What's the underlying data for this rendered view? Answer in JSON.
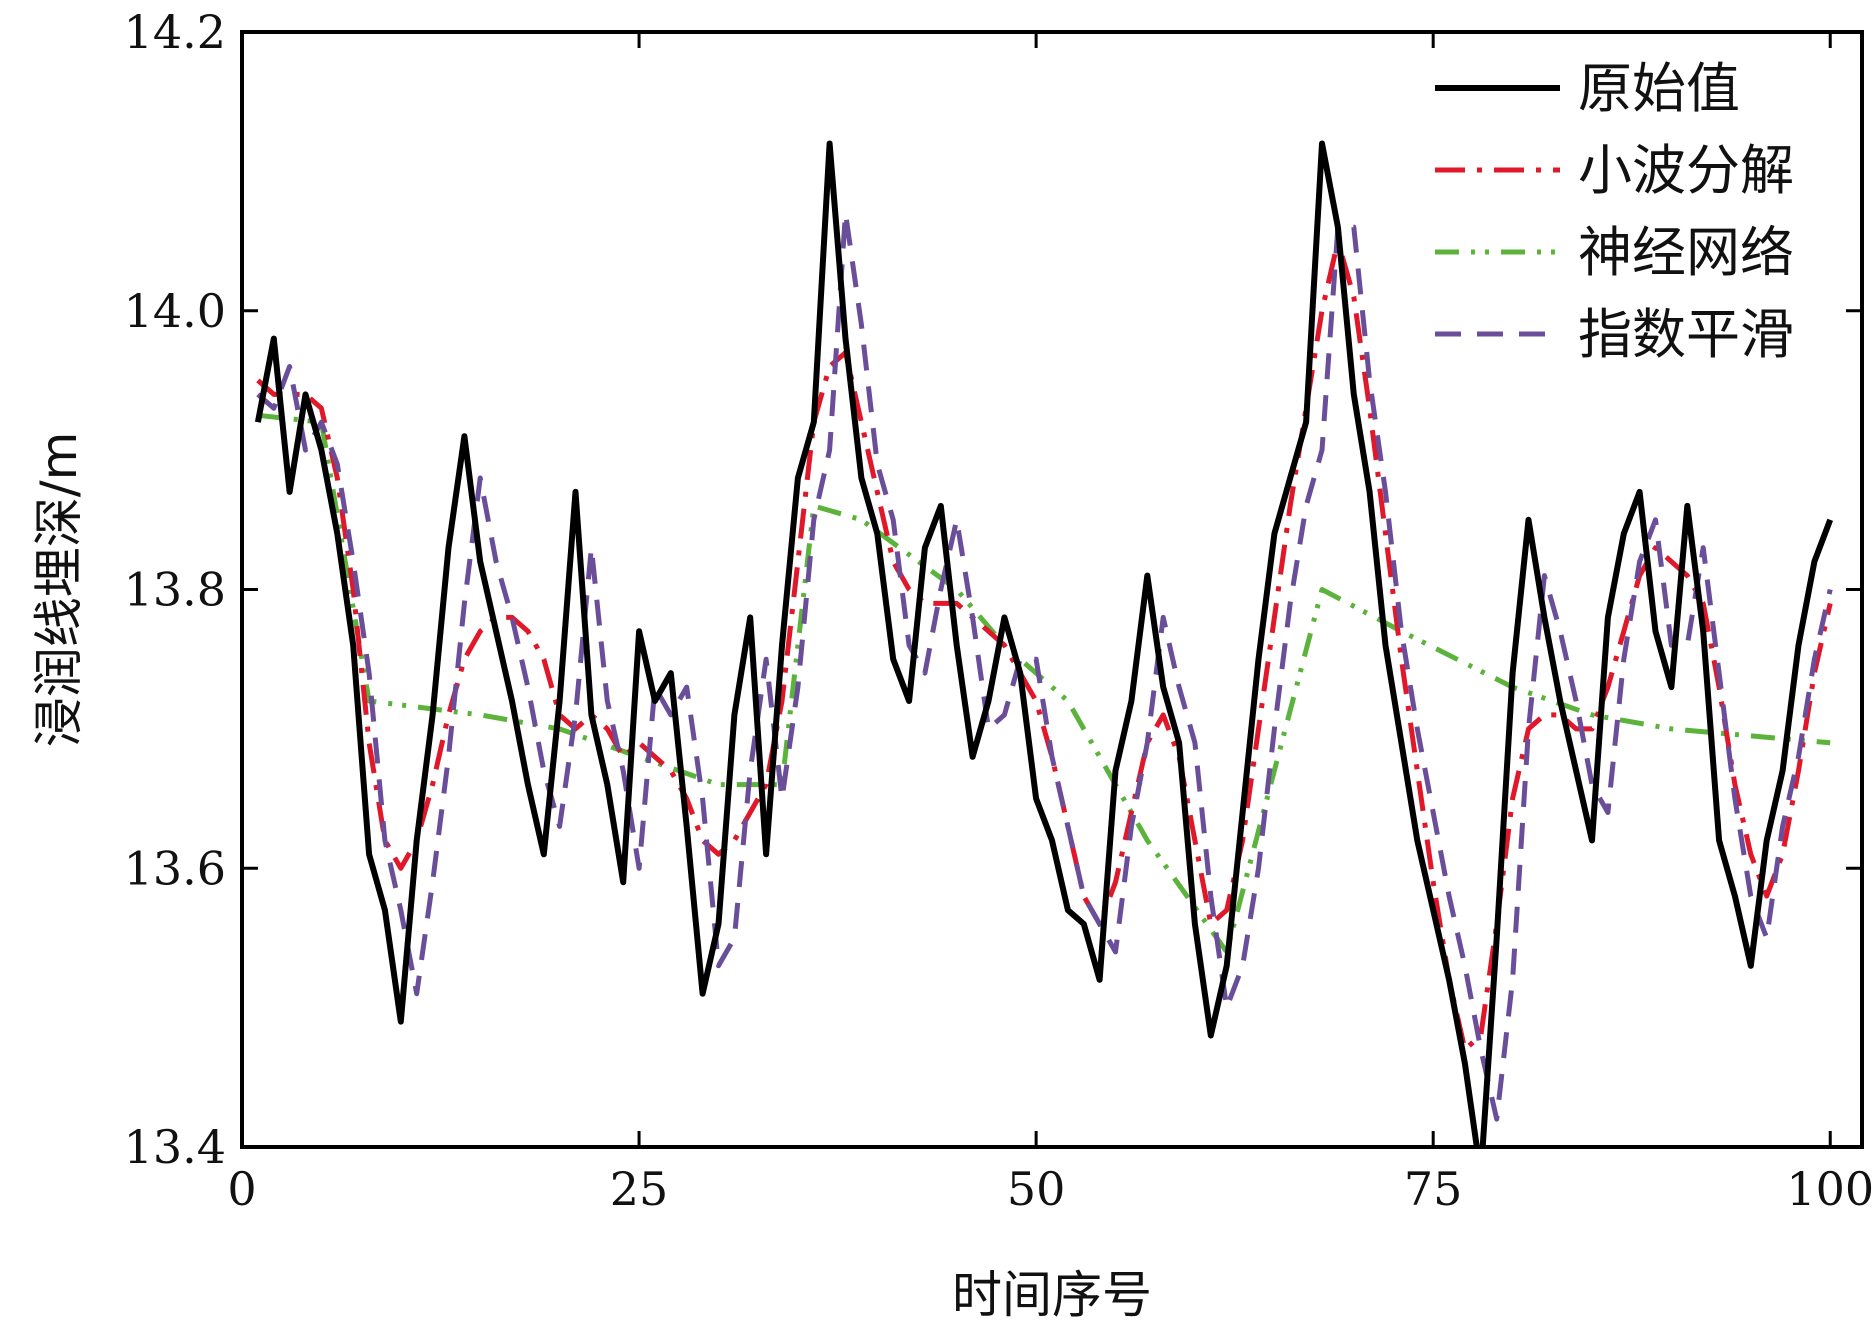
{
  "chart_data": {
    "type": "line",
    "title": "",
    "xlabel": "时间序号",
    "ylabel": "浸润线埋深/m",
    "xlim": [
      0,
      102
    ],
    "ylim": [
      13.4,
      14.2
    ],
    "xticks": [
      0,
      25,
      50,
      75,
      100
    ],
    "xtick_labels": [
      "0",
      "25",
      "50",
      "75",
      "100"
    ],
    "yticks": [
      13.4,
      13.6,
      13.8,
      14.0,
      14.2
    ],
    "ytick_labels": [
      "13.4",
      "13.6",
      "13.8",
      "14.0",
      "14.2"
    ],
    "grid": false,
    "legend_position": "top-right",
    "series": [
      {
        "name": "原始值",
        "color": "#000000",
        "style": "solid",
        "x": [
          1,
          2,
          3,
          4,
          5,
          6,
          7,
          8,
          9,
          10,
          11,
          12,
          13,
          14,
          15,
          16,
          17,
          18,
          19,
          20,
          21,
          22,
          23,
          24,
          25,
          26,
          27,
          28,
          29,
          30,
          31,
          32,
          33,
          34,
          35,
          36,
          37,
          38,
          39,
          40,
          41,
          42,
          43,
          44,
          45,
          46,
          47,
          48,
          49,
          50,
          51,
          52,
          53,
          54,
          55,
          56,
          57,
          58,
          59,
          60,
          61,
          62,
          63,
          64,
          65,
          66,
          67,
          68,
          69,
          70,
          71,
          72,
          73,
          74,
          75,
          76,
          77,
          78,
          79,
          80,
          81,
          82,
          83,
          84,
          85,
          86,
          87,
          88,
          89,
          90,
          91,
          92,
          93,
          94,
          95,
          96,
          97,
          98,
          99,
          100
        ],
        "y": [
          13.92,
          13.98,
          13.87,
          13.94,
          13.9,
          13.84,
          13.76,
          13.61,
          13.57,
          13.49,
          13.62,
          13.71,
          13.83,
          13.91,
          13.82,
          13.77,
          13.72,
          13.66,
          13.61,
          13.72,
          13.87,
          13.71,
          13.66,
          13.59,
          13.77,
          13.72,
          13.74,
          13.63,
          13.51,
          13.56,
          13.71,
          13.78,
          13.61,
          13.76,
          13.88,
          13.92,
          14.12,
          13.98,
          13.88,
          13.84,
          13.75,
          13.72,
          13.83,
          13.86,
          13.76,
          13.68,
          13.72,
          13.78,
          13.74,
          13.65,
          13.62,
          13.57,
          13.56,
          13.52,
          13.67,
          13.72,
          13.81,
          13.73,
          13.69,
          13.56,
          13.48,
          13.53,
          13.64,
          13.75,
          13.84,
          13.88,
          13.92,
          14.12,
          14.06,
          13.94,
          13.87,
          13.76,
          13.69,
          13.62,
          13.57,
          13.52,
          13.46,
          13.38,
          13.55,
          13.74,
          13.85,
          13.78,
          13.72,
          13.67,
          13.62,
          13.78,
          13.84,
          13.87,
          13.77,
          13.73,
          13.86,
          13.77,
          13.62,
          13.58,
          13.53,
          13.62,
          13.67,
          13.76,
          13.82,
          13.85
        ]
      },
      {
        "name": "小波分解",
        "color": "#e0182a",
        "style": "dash-dot",
        "x": [
          1,
          2,
          3,
          4,
          5,
          6,
          7,
          8,
          9,
          10,
          11,
          12,
          13,
          14,
          15,
          16,
          17,
          18,
          19,
          20,
          21,
          22,
          23,
          24,
          25,
          26,
          27,
          28,
          29,
          30,
          31,
          32,
          33,
          34,
          35,
          36,
          37,
          38,
          39,
          40,
          41,
          42,
          43,
          44,
          45,
          46,
          47,
          48,
          49,
          50,
          51,
          52,
          53,
          54,
          55,
          56,
          57,
          58,
          59,
          60,
          61,
          62,
          63,
          64,
          65,
          66,
          67,
          68,
          69,
          70,
          71,
          72,
          73,
          74,
          75,
          76,
          77,
          78,
          79,
          80,
          81,
          82,
          83,
          84,
          85,
          86,
          87,
          88,
          89,
          90,
          91,
          92,
          93,
          94,
          95,
          96,
          97,
          98,
          99,
          100
        ],
        "y": [
          13.95,
          13.94,
          13.94,
          13.94,
          13.93,
          13.88,
          13.8,
          13.69,
          13.62,
          13.6,
          13.62,
          13.66,
          13.71,
          13.75,
          13.77,
          13.78,
          13.78,
          13.77,
          13.75,
          13.71,
          13.7,
          13.71,
          13.7,
          13.68,
          13.69,
          13.68,
          13.67,
          13.65,
          13.62,
          13.61,
          13.62,
          13.64,
          13.66,
          13.72,
          13.82,
          13.92,
          13.96,
          13.97,
          13.92,
          13.87,
          13.82,
          13.8,
          13.79,
          13.79,
          13.79,
          13.78,
          13.77,
          13.76,
          13.74,
          13.72,
          13.68,
          13.63,
          13.58,
          13.56,
          13.59,
          13.64,
          13.69,
          13.71,
          13.68,
          13.62,
          13.56,
          13.57,
          13.62,
          13.7,
          13.78,
          13.86,
          13.93,
          14.0,
          14.05,
          14.01,
          13.93,
          13.84,
          13.75,
          13.67,
          13.59,
          13.52,
          13.47,
          13.48,
          13.56,
          13.65,
          13.7,
          13.71,
          13.71,
          13.7,
          13.7,
          13.73,
          13.77,
          13.81,
          13.83,
          13.82,
          13.81,
          13.79,
          13.73,
          13.66,
          13.61,
          13.58,
          13.61,
          13.67,
          13.74,
          13.79
        ]
      },
      {
        "name": "神经网络",
        "color": "#5bb33b",
        "style": "dash-dot-dot",
        "x": [
          1,
          5,
          8,
          15,
          20,
          25,
          30,
          34,
          36,
          39,
          45,
          48,
          52,
          57,
          62,
          68,
          73,
          80,
          85,
          90,
          100
        ],
        "y": [
          13.925,
          13.92,
          13.72,
          13.71,
          13.7,
          13.68,
          13.66,
          13.66,
          13.86,
          13.85,
          13.8,
          13.76,
          13.72,
          13.62,
          13.54,
          13.8,
          13.77,
          13.73,
          13.71,
          13.7,
          13.69
        ]
      },
      {
        "name": "指数平滑",
        "color": "#6a4e9a",
        "style": "dashed",
        "x": [
          1,
          2,
          3,
          4,
          5,
          6,
          7,
          8,
          9,
          10,
          11,
          12,
          13,
          14,
          15,
          16,
          17,
          18,
          19,
          20,
          21,
          22,
          23,
          24,
          25,
          26,
          27,
          28,
          29,
          30,
          31,
          32,
          33,
          34,
          35,
          36,
          37,
          38,
          39,
          40,
          41,
          42,
          43,
          44,
          45,
          46,
          47,
          48,
          49,
          50,
          51,
          52,
          53,
          54,
          55,
          56,
          57,
          58,
          59,
          60,
          61,
          62,
          63,
          64,
          65,
          66,
          67,
          68,
          69,
          70,
          71,
          72,
          73,
          74,
          75,
          76,
          77,
          78,
          79,
          80,
          81,
          82,
          83,
          84,
          85,
          86,
          87,
          88,
          89,
          90,
          91,
          92,
          93,
          94,
          95,
          96,
          97,
          98,
          99,
          100
        ],
        "y": [
          13.94,
          13.93,
          13.96,
          13.9,
          13.92,
          13.89,
          13.82,
          13.74,
          13.62,
          13.57,
          13.51,
          13.59,
          13.68,
          13.79,
          13.88,
          13.82,
          13.78,
          13.73,
          13.67,
          13.63,
          13.71,
          13.83,
          13.72,
          13.67,
          13.6,
          13.73,
          13.71,
          13.73,
          13.65,
          13.53,
          13.55,
          13.67,
          13.75,
          13.65,
          13.73,
          13.85,
          13.9,
          14.07,
          13.99,
          13.89,
          13.85,
          13.76,
          13.74,
          13.8,
          13.85,
          13.78,
          13.7,
          13.71,
          13.75,
          13.75,
          13.68,
          13.63,
          13.58,
          13.56,
          13.54,
          13.63,
          13.69,
          13.78,
          13.73,
          13.69,
          13.58,
          13.5,
          13.53,
          13.6,
          13.7,
          13.79,
          13.86,
          13.9,
          14.06,
          14.06,
          13.95,
          13.87,
          13.77,
          13.7,
          13.64,
          13.58,
          13.53,
          13.47,
          13.42,
          13.52,
          13.7,
          13.81,
          13.77,
          13.72,
          13.66,
          13.64,
          13.75,
          13.82,
          13.85,
          13.76,
          13.76,
          13.83,
          13.74,
          13.65,
          13.58,
          13.55,
          13.63,
          13.68,
          13.75,
          13.8
        ]
      }
    ]
  }
}
